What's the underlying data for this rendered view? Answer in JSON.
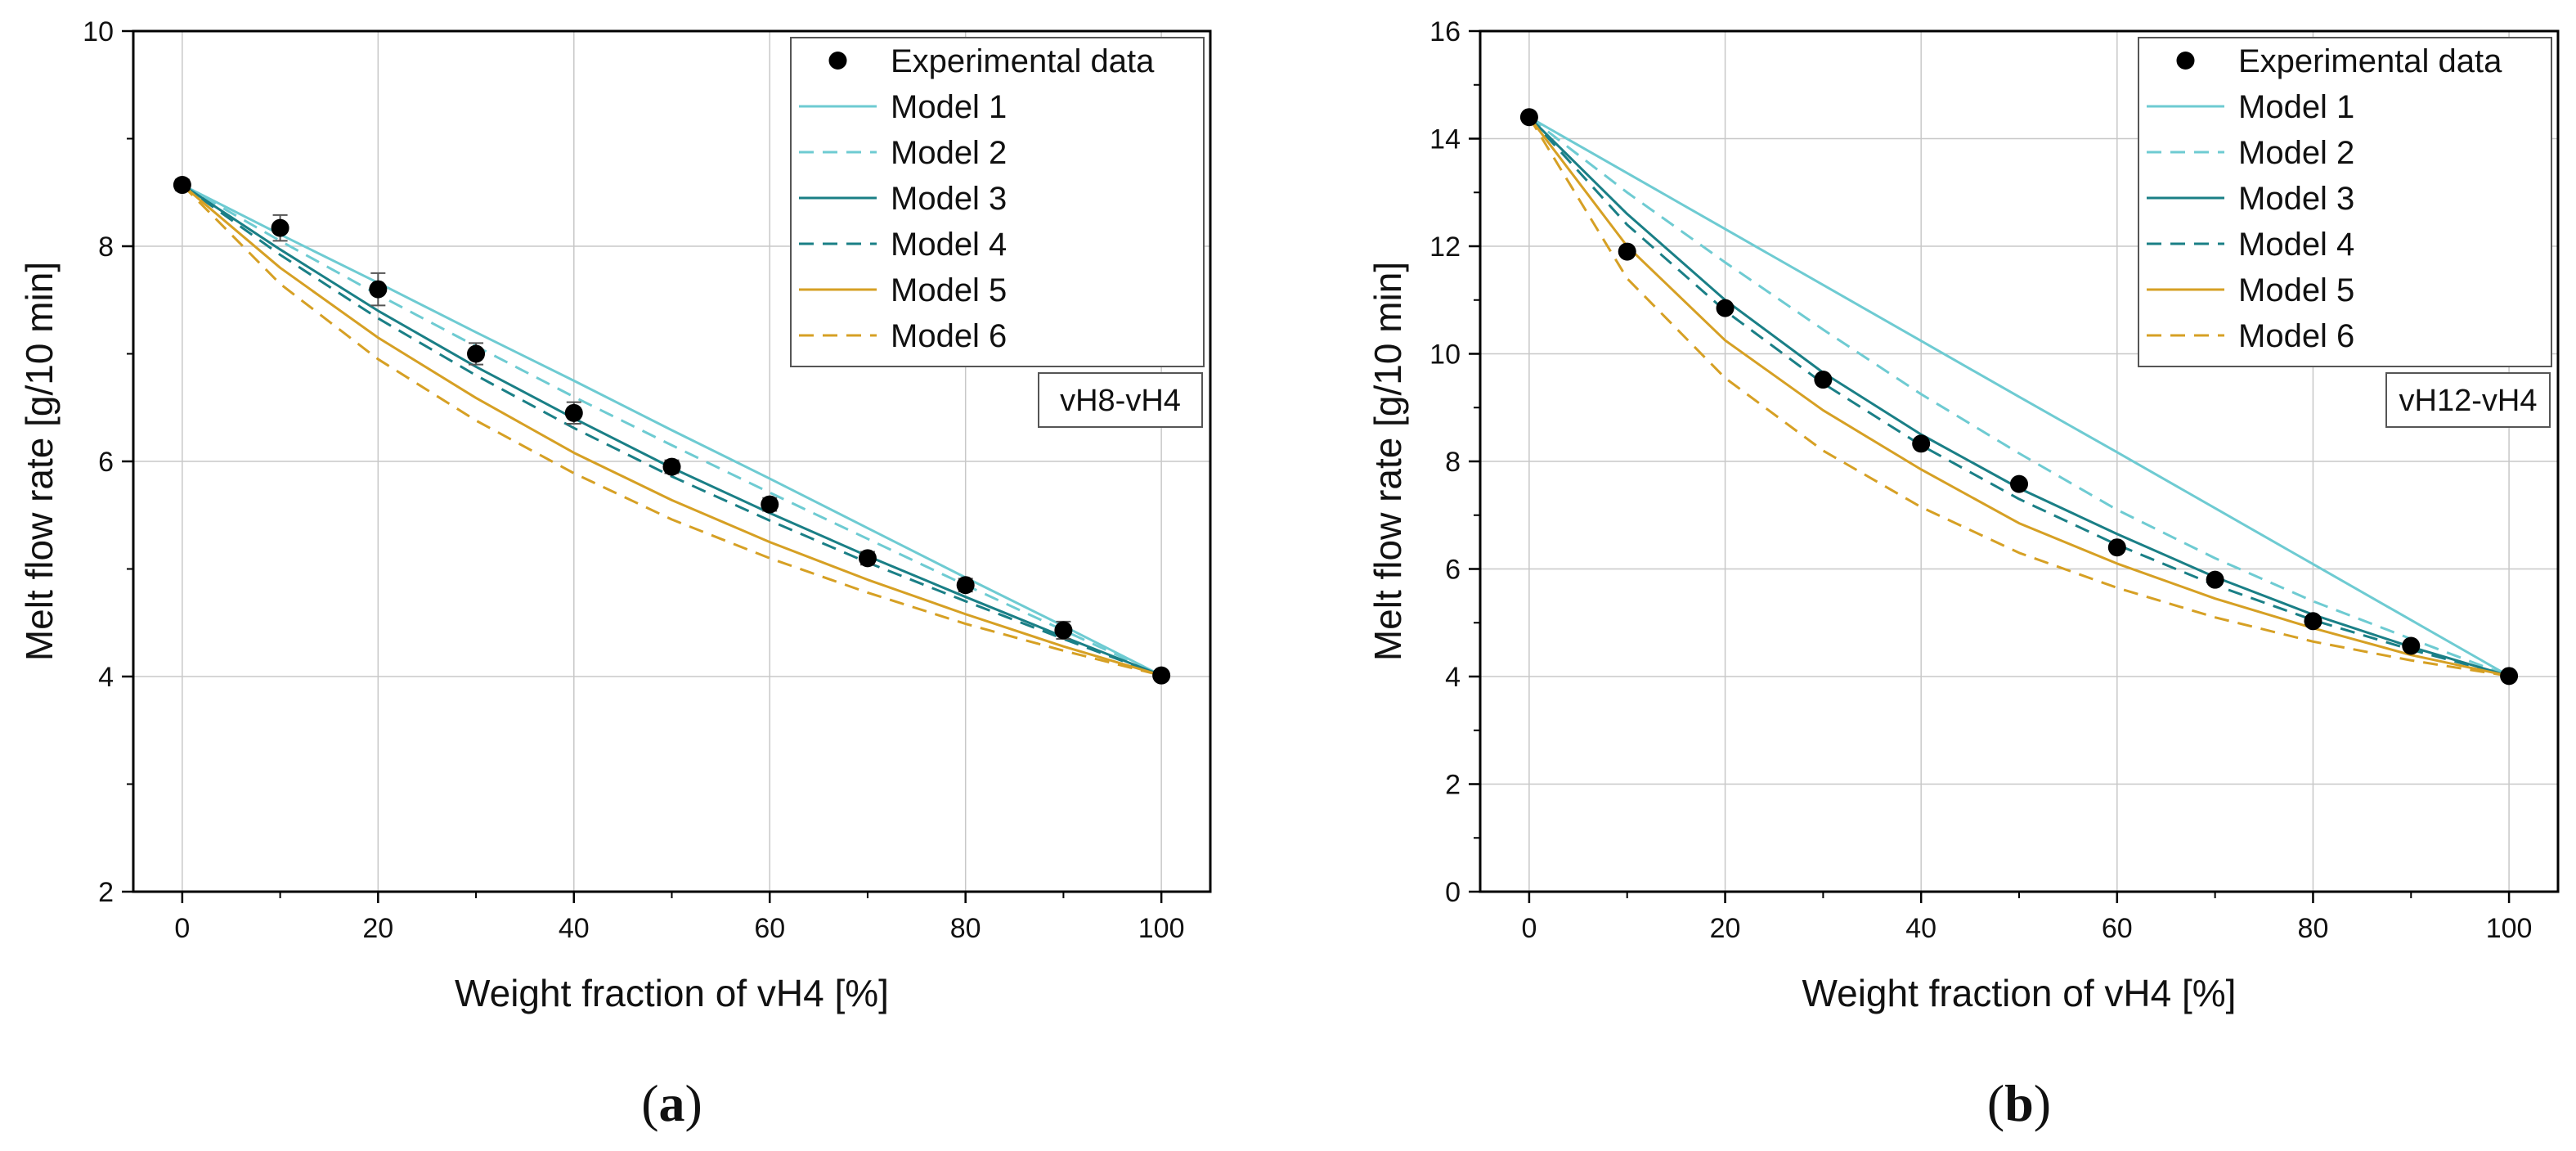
{
  "chart_data": [
    {
      "type": "line",
      "panel": "a",
      "panel_label_left": "(",
      "panel_label_letter": "a",
      "panel_label_right": ")",
      "annotation": "vH8-vH4",
      "xlabel": "Weight fraction of vH4 [%]",
      "ylabel": "Melt flow rate [g/10 min]",
      "xlim": [
        -5,
        105
      ],
      "ylim": [
        2,
        10
      ],
      "xticks": [
        0,
        20,
        40,
        60,
        80,
        100
      ],
      "yticks": [
        2,
        4,
        6,
        8,
        10
      ],
      "grid": true,
      "legend_position": "top-right",
      "x": [
        0,
        10,
        20,
        30,
        40,
        50,
        60,
        70,
        80,
        90,
        100
      ],
      "series": [
        {
          "name": "Model 1",
          "style": "solid",
          "color": "#6ecbd2",
          "values": [
            8.57,
            8.11,
            7.66,
            7.2,
            6.75,
            6.29,
            5.84,
            5.38,
            4.92,
            4.47,
            4.01
          ]
        },
        {
          "name": "Model 2",
          "style": "dashed",
          "color": "#6ecbd2",
          "values": [
            8.57,
            8.05,
            7.55,
            7.07,
            6.6,
            6.15,
            5.71,
            5.28,
            4.85,
            4.43,
            4.01
          ]
        },
        {
          "name": "Model 3",
          "style": "solid",
          "color": "#1a7f86",
          "values": [
            8.57,
            7.97,
            7.4,
            6.88,
            6.4,
            5.94,
            5.52,
            5.12,
            4.74,
            4.37,
            4.01
          ]
        },
        {
          "name": "Model 4",
          "style": "dashed",
          "color": "#1a7f86",
          "values": [
            8.57,
            7.92,
            7.33,
            6.8,
            6.31,
            5.86,
            5.45,
            5.06,
            4.7,
            4.35,
            4.01
          ]
        },
        {
          "name": "Model 5",
          "style": "solid",
          "color": "#d6a024",
          "values": [
            8.57,
            7.8,
            7.15,
            6.59,
            6.08,
            5.64,
            5.25,
            4.9,
            4.58,
            4.28,
            4.01
          ]
        },
        {
          "name": "Model 6",
          "style": "dashed",
          "color": "#d6a024",
          "values": [
            8.57,
            7.65,
            6.95,
            6.38,
            5.89,
            5.46,
            5.1,
            4.78,
            4.49,
            4.24,
            4.01
          ]
        }
      ],
      "experimental": {
        "name": "Experimental data",
        "x": [
          0,
          10,
          20,
          30,
          40,
          50,
          60,
          70,
          80,
          90,
          100
        ],
        "values": [
          8.57,
          8.17,
          7.6,
          7.0,
          6.45,
          5.95,
          5.6,
          5.1,
          4.85,
          4.43,
          4.01
        ],
        "errors": [
          0.05,
          0.12,
          0.15,
          0.1,
          0.1,
          0.06,
          0.06,
          0.06,
          0.06,
          0.08,
          0.04
        ]
      }
    },
    {
      "type": "line",
      "panel": "b",
      "panel_label_left": "(",
      "panel_label_letter": "b",
      "panel_label_right": ")",
      "annotation": "vH12-vH4",
      "xlabel": "Weight fraction of vH4 [%]",
      "ylabel": "Melt flow rate [g/10 min]",
      "xlim": [
        -5,
        105
      ],
      "ylim": [
        0,
        16
      ],
      "xticks": [
        0,
        20,
        40,
        60,
        80,
        100
      ],
      "yticks": [
        0,
        2,
        4,
        6,
        8,
        10,
        12,
        14,
        16
      ],
      "grid": true,
      "legend_position": "top-right",
      "x": [
        0,
        10,
        20,
        30,
        40,
        50,
        60,
        70,
        80,
        90,
        100
      ],
      "series": [
        {
          "name": "Model 1",
          "style": "solid",
          "color": "#6ecbd2",
          "values": [
            14.4,
            13.36,
            12.32,
            11.28,
            10.24,
            9.2,
            8.17,
            7.13,
            6.09,
            5.05,
            4.01
          ]
        },
        {
          "name": "Model 2",
          "style": "dashed",
          "color": "#6ecbd2",
          "values": [
            14.4,
            13.0,
            11.7,
            10.45,
            9.25,
            8.15,
            7.1,
            6.2,
            5.4,
            4.7,
            4.01
          ]
        },
        {
          "name": "Model 3",
          "style": "solid",
          "color": "#1a7f86",
          "values": [
            14.4,
            12.6,
            11.0,
            9.65,
            8.5,
            7.5,
            6.65,
            5.85,
            5.15,
            4.55,
            4.01
          ]
        },
        {
          "name": "Model 4",
          "style": "dashed",
          "color": "#1a7f86",
          "values": [
            14.4,
            12.4,
            10.8,
            9.45,
            8.3,
            7.3,
            6.45,
            5.7,
            5.05,
            4.5,
            4.01
          ]
        },
        {
          "name": "Model 5",
          "style": "solid",
          "color": "#d6a024",
          "values": [
            14.4,
            12.0,
            10.25,
            8.95,
            7.85,
            6.85,
            6.1,
            5.45,
            4.9,
            4.4,
            4.01
          ]
        },
        {
          "name": "Model 6",
          "style": "dashed",
          "color": "#d6a024",
          "values": [
            14.4,
            11.4,
            9.55,
            8.2,
            7.15,
            6.3,
            5.65,
            5.1,
            4.65,
            4.3,
            4.01
          ]
        }
      ],
      "experimental": {
        "name": "Experimental data",
        "x": [
          0,
          10,
          20,
          30,
          40,
          50,
          60,
          70,
          80,
          90,
          100
        ],
        "values": [
          14.4,
          11.9,
          10.85,
          9.52,
          8.33,
          7.58,
          6.4,
          5.8,
          5.03,
          4.57,
          4.01
        ],
        "errors": [
          0.05,
          0.05,
          0.05,
          0.05,
          0.05,
          0.05,
          0.05,
          0.05,
          0.05,
          0.05,
          0.05
        ]
      }
    }
  ]
}
